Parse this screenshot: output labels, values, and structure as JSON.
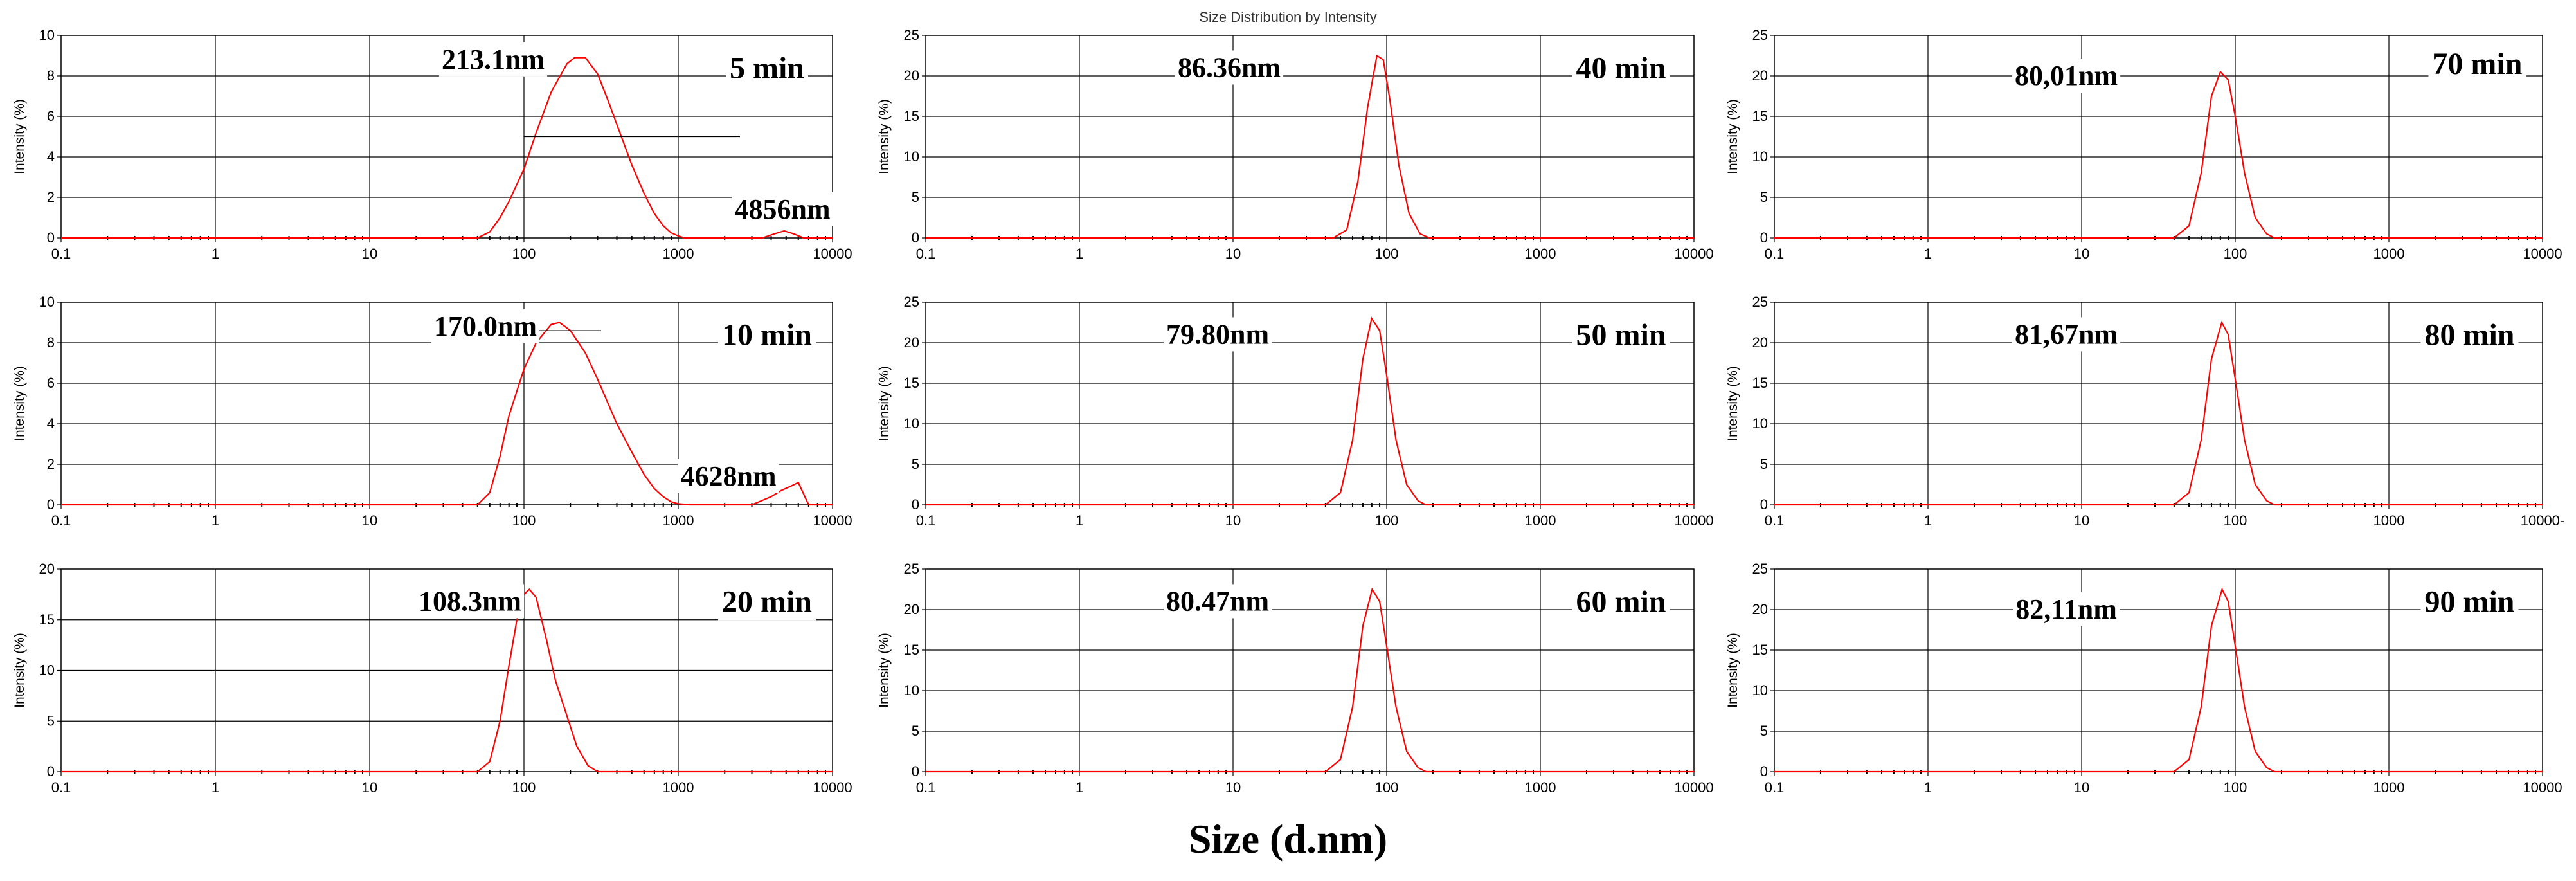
{
  "figure": {
    "title": "Size Distribution by Intensity",
    "xlabel": "Size (d.nm)"
  },
  "chart_data": [
    {
      "type": "line",
      "id": "p5",
      "xscale": "log",
      "xlim": [
        0.1,
        10000
      ],
      "ylim": [
        0,
        10
      ],
      "yticks": [
        0,
        2,
        4,
        6,
        8,
        10
      ],
      "xtick_labels": [
        "0.1",
        "1",
        "10",
        "100",
        "1000",
        "10000"
      ],
      "ylabel": "Intensity (%)",
      "time_label": "5 min",
      "annotations": [
        "213.1nm",
        "4856nm"
      ],
      "series": [
        {
          "name": "Intensity",
          "color": "#ff0000",
          "x": [
            0.1,
            50,
            60,
            70,
            80,
            100,
            120,
            150,
            190,
            213.1,
            250,
            300,
            350,
            400,
            500,
            600,
            700,
            800,
            900,
            1000,
            1100,
            1200,
            3500,
            4200,
            4856,
            5600,
            6500,
            10000
          ],
          "y": [
            0,
            0,
            0.3,
            1.0,
            1.8,
            3.4,
            5.2,
            7.2,
            8.6,
            8.9,
            8.9,
            8.1,
            6.8,
            5.6,
            3.6,
            2.2,
            1.2,
            0.6,
            0.25,
            0.1,
            0,
            0,
            0,
            0.2,
            0.35,
            0.2,
            0,
            0
          ]
        }
      ]
    },
    {
      "type": "line",
      "id": "p10",
      "xscale": "log",
      "xlim": [
        0.1,
        10000
      ],
      "ylim": [
        0,
        10
      ],
      "yticks": [
        0,
        2,
        4,
        6,
        8,
        10
      ],
      "xtick_labels": [
        "0.1",
        "1",
        "10",
        "100",
        "1000",
        "10000"
      ],
      "ylabel": "Intensity (%)",
      "time_label": "10 min",
      "annotations": [
        "170.0nm",
        "4628nm"
      ],
      "series": [
        {
          "name": "Intensity",
          "color": "#ff0000",
          "x": [
            0.1,
            50,
            60,
            70,
            80,
            100,
            120,
            150,
            170,
            200,
            250,
            300,
            400,
            500,
            600,
            700,
            800,
            900,
            1000,
            1200,
            3000,
            4000,
            4628,
            5300,
            6000,
            7000,
            10000
          ],
          "y": [
            0,
            0,
            0.6,
            2.4,
            4.4,
            6.7,
            8.0,
            8.9,
            9.0,
            8.6,
            7.5,
            6.2,
            4.0,
            2.6,
            1.5,
            0.8,
            0.4,
            0.15,
            0.05,
            0,
            0,
            0.4,
            0.7,
            0.9,
            1.1,
            0,
            0
          ]
        }
      ]
    },
    {
      "type": "line",
      "id": "p20",
      "xscale": "log",
      "xlim": [
        0.1,
        10000
      ],
      "ylim": [
        0,
        20
      ],
      "yticks": [
        0,
        5,
        10,
        15,
        20
      ],
      "xtick_labels": [
        "0.1",
        "1",
        "10",
        "100",
        "1000",
        "10000"
      ],
      "ylabel": "Intensity (%)",
      "time_label": "20 min",
      "annotations": [
        "108.3nm"
      ],
      "series": [
        {
          "name": "Intensity",
          "color": "#ff0000",
          "x": [
            0.1,
            50,
            60,
            70,
            80,
            90,
            100,
            108.3,
            120,
            140,
            160,
            190,
            220,
            260,
            300,
            10000
          ],
          "y": [
            0,
            0,
            1.0,
            5.0,
            10.5,
            15.0,
            17.5,
            18.0,
            17.2,
            13.0,
            9.0,
            5.5,
            2.5,
            0.6,
            0,
            0
          ]
        }
      ]
    },
    {
      "type": "line",
      "id": "p40",
      "xscale": "log",
      "xlim": [
        0.1,
        10000
      ],
      "ylim": [
        0,
        25
      ],
      "yticks": [
        0,
        5,
        10,
        15,
        20,
        25
      ],
      "xtick_labels": [
        "0.1",
        "1",
        "10",
        "100",
        "1000",
        "10000"
      ],
      "ylabel": "Intensity (%)",
      "time_label": "40 min",
      "annotations": [
        "86.36nm"
      ],
      "series": [
        {
          "name": "Intensity",
          "color": "#ff0000",
          "x": [
            0.1,
            45,
            55,
            65,
            75,
            86.36,
            95,
            105,
            120,
            140,
            165,
            190,
            10000
          ],
          "y": [
            0,
            0,
            1.0,
            7.0,
            16.0,
            22.5,
            22.0,
            17.0,
            9.0,
            3.0,
            0.5,
            0,
            0
          ]
        }
      ]
    },
    {
      "type": "line",
      "id": "p50",
      "xscale": "log",
      "xlim": [
        0.1,
        10000
      ],
      "ylim": [
        0,
        25
      ],
      "yticks": [
        0,
        5,
        10,
        15,
        20,
        25
      ],
      "xtick_labels": [
        "0.1",
        "1",
        "10",
        "100",
        "1000",
        "10000"
      ],
      "ylabel": "Intensity (%)",
      "time_label": "50 min",
      "annotations": [
        "79.80nm"
      ],
      "series": [
        {
          "name": "Intensity",
          "color": "#ff0000",
          "x": [
            0.1,
            40,
            50,
            60,
            70,
            79.8,
            90,
            100,
            115,
            135,
            160,
            180,
            10000
          ],
          "y": [
            0,
            0,
            1.5,
            8.0,
            18.0,
            23.0,
            21.5,
            16.0,
            8.0,
            2.5,
            0.5,
            0,
            0
          ]
        }
      ]
    },
    {
      "type": "line",
      "id": "p60",
      "xscale": "log",
      "xlim": [
        0.1,
        10000
      ],
      "ylim": [
        0,
        25
      ],
      "yticks": [
        0,
        5,
        10,
        15,
        20,
        25
      ],
      "xtick_labels": [
        "0.1",
        "1",
        "10",
        "100",
        "1000",
        "10000"
      ],
      "ylabel": "Intensity (%)",
      "time_label": "60 min",
      "annotations": [
        "80.47nm"
      ],
      "series": [
        {
          "name": "Intensity",
          "color": "#ff0000",
          "x": [
            0.1,
            40,
            50,
            60,
            70,
            80.47,
            90,
            100,
            115,
            135,
            160,
            180,
            10000
          ],
          "y": [
            0,
            0,
            1.5,
            8.0,
            18.0,
            22.5,
            21.0,
            15.5,
            8.0,
            2.5,
            0.5,
            0,
            0
          ]
        }
      ]
    },
    {
      "type": "line",
      "id": "p70",
      "xscale": "log",
      "xlim": [
        0.1,
        10000
      ],
      "ylim": [
        0,
        25
      ],
      "yticks": [
        0,
        5,
        10,
        15,
        20,
        25
      ],
      "xtick_labels": [
        "0.1",
        "1",
        "10",
        "100",
        "1000",
        "10000"
      ],
      "ylabel": "Intensity (%)",
      "time_label": "70 min",
      "annotations": [
        "80,01nm"
      ],
      "series": [
        {
          "name": "Intensity",
          "color": "#ff0000",
          "x": [
            0.1,
            40,
            50,
            60,
            70,
            80.01,
            90,
            100,
            115,
            135,
            160,
            180,
            10000
          ],
          "y": [
            0,
            0,
            1.5,
            8.0,
            17.5,
            20.5,
            19.5,
            15.0,
            8.0,
            2.5,
            0.5,
            0,
            0
          ]
        }
      ]
    },
    {
      "type": "line",
      "id": "p80",
      "xscale": "log",
      "xlim": [
        0.1,
        10000
      ],
      "ylim": [
        0,
        25
      ],
      "yticks": [
        0,
        5,
        10,
        15,
        20,
        25
      ],
      "xtick_labels": [
        "0.1",
        "1",
        "10",
        "100",
        "1000",
        "10000-"
      ],
      "ylabel": "Intensity (%)",
      "time_label": "80 min",
      "annotations": [
        "81,67nm"
      ],
      "series": [
        {
          "name": "Intensity",
          "color": "#ff0000",
          "x": [
            0.1,
            40,
            50,
            60,
            70,
            81.67,
            90,
            100,
            115,
            135,
            160,
            180,
            10000
          ],
          "y": [
            0,
            0,
            1.5,
            8.0,
            18.0,
            22.5,
            21.0,
            15.5,
            8.0,
            2.5,
            0.5,
            0,
            0
          ]
        }
      ]
    },
    {
      "type": "line",
      "id": "p90",
      "xscale": "log",
      "xlim": [
        0.1,
        10000
      ],
      "ylim": [
        0,
        25
      ],
      "yticks": [
        0,
        5,
        10,
        15,
        20,
        25
      ],
      "xtick_labels": [
        "0.1",
        "1",
        "10",
        "100",
        "1000",
        "10000"
      ],
      "ylabel": "Intensity (%)",
      "time_label": "90 min",
      "annotations": [
        "82,11nm"
      ],
      "series": [
        {
          "name": "Intensity",
          "color": "#ff0000",
          "x": [
            0.1,
            40,
            50,
            60,
            70,
            82.11,
            90,
            100,
            115,
            135,
            160,
            180,
            10000
          ],
          "y": [
            0,
            0,
            1.5,
            8.0,
            18.0,
            22.5,
            21.0,
            15.5,
            8.0,
            2.5,
            0.5,
            0,
            0
          ]
        }
      ]
    }
  ]
}
